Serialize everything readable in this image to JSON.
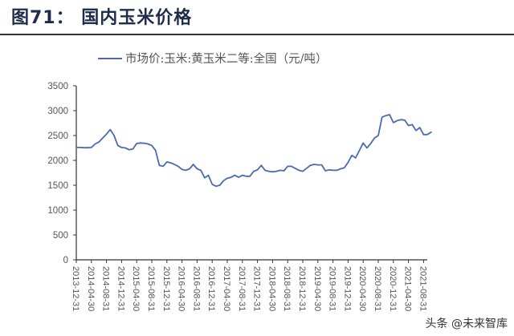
{
  "figure": {
    "title": "图71：  国内玉米价格"
  },
  "legend": {
    "series_label": "市场价:玉米:黄玉米二等:全国（元/吨）"
  },
  "watermark": "头条 @未来智库",
  "colors": {
    "line": "#4a6ab3",
    "axis": "#333333",
    "text": "#555555",
    "title": "#1f2d4a"
  },
  "chart_data": {
    "type": "line",
    "title": "图71：国内玉米价格",
    "xlabel": "",
    "ylabel": "",
    "ylim": [
      0,
      3500
    ],
    "yticks": [
      0,
      500,
      1000,
      1500,
      2000,
      2500,
      3000,
      3500
    ],
    "grid": false,
    "legend_position": "top",
    "xticks": [
      "2013-12-31",
      "2014-04-30",
      "2014-08-31",
      "2014-12-31",
      "2015-04-30",
      "2015-08-31",
      "2015-12-31",
      "2016-04-30",
      "2016-08-31",
      "2016-12-31",
      "2017-04-30",
      "2017-08-31",
      "2017-12-31",
      "2018-04-30",
      "2018-08-31",
      "2018-12-31",
      "2019-04-30",
      "2019-08-31",
      "2019-12-31",
      "2020-04-30",
      "2020-08-31",
      "2020-12-31",
      "2021-04-30",
      "2021-08-31"
    ],
    "series": [
      {
        "name": "市场价:玉米:黄玉米二等:全国（元/吨）",
        "x": [
          "2013-12",
          "2014-01",
          "2014-02",
          "2014-03",
          "2014-04",
          "2014-05",
          "2014-06",
          "2014-07",
          "2014-08",
          "2014-09",
          "2014-10",
          "2014-11",
          "2014-12",
          "2015-01",
          "2015-02",
          "2015-03",
          "2015-04",
          "2015-05",
          "2015-06",
          "2015-07",
          "2015-08",
          "2015-09",
          "2015-10",
          "2015-11",
          "2015-12",
          "2016-01",
          "2016-02",
          "2016-03",
          "2016-04",
          "2016-05",
          "2016-06",
          "2016-07",
          "2016-08",
          "2016-09",
          "2016-10",
          "2016-11",
          "2016-12",
          "2017-01",
          "2017-02",
          "2017-03",
          "2017-04",
          "2017-05",
          "2017-06",
          "2017-07",
          "2017-08",
          "2017-09",
          "2017-10",
          "2017-11",
          "2017-12",
          "2018-01",
          "2018-02",
          "2018-03",
          "2018-04",
          "2018-05",
          "2018-06",
          "2018-07",
          "2018-08",
          "2018-09",
          "2018-10",
          "2018-11",
          "2018-12",
          "2019-01",
          "2019-02",
          "2019-03",
          "2019-04",
          "2019-05",
          "2019-06",
          "2019-07",
          "2019-08",
          "2019-09",
          "2019-10",
          "2019-11",
          "2019-12",
          "2020-01",
          "2020-02",
          "2020-03",
          "2020-04",
          "2020-05",
          "2020-06",
          "2020-07",
          "2020-08",
          "2020-09",
          "2020-10",
          "2020-11",
          "2020-12",
          "2021-01",
          "2021-02",
          "2021-03",
          "2021-04",
          "2021-05",
          "2021-06",
          "2021-07",
          "2021-08",
          "2021-09",
          "2021-10"
        ],
        "values": [
          2260,
          2260,
          2255,
          2255,
          2260,
          2330,
          2370,
          2450,
          2530,
          2620,
          2500,
          2300,
          2260,
          2250,
          2215,
          2230,
          2340,
          2350,
          2345,
          2330,
          2300,
          2200,
          1900,
          1880,
          1970,
          1950,
          1920,
          1880,
          1820,
          1800,
          1830,
          1920,
          1830,
          1800,
          1650,
          1700,
          1520,
          1480,
          1500,
          1590,
          1640,
          1660,
          1700,
          1660,
          1700,
          1680,
          1680,
          1780,
          1810,
          1900,
          1800,
          1780,
          1770,
          1780,
          1800,
          1790,
          1880,
          1880,
          1840,
          1800,
          1780,
          1840,
          1900,
          1920,
          1910,
          1910,
          1790,
          1810,
          1800,
          1800,
          1830,
          1850,
          1960,
          2100,
          2050,
          2200,
          2350,
          2250,
          2340,
          2450,
          2500,
          2870,
          2900,
          2920,
          2760,
          2800,
          2820,
          2810,
          2700,
          2720,
          2600,
          2660,
          2520,
          2520,
          2570
        ]
      }
    ]
  }
}
